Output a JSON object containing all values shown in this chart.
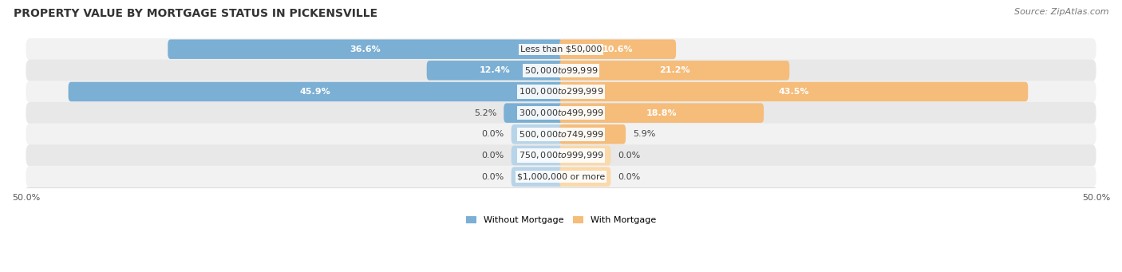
{
  "title": "PROPERTY VALUE BY MORTGAGE STATUS IN PICKENSVILLE",
  "source": "Source: ZipAtlas.com",
  "categories": [
    "Less than $50,000",
    "$50,000 to $99,999",
    "$100,000 to $299,999",
    "$300,000 to $499,999",
    "$500,000 to $749,999",
    "$750,000 to $999,999",
    "$1,000,000 or more"
  ],
  "without_mortgage": [
    36.6,
    12.4,
    45.9,
    5.2,
    0.0,
    0.0,
    0.0
  ],
  "with_mortgage": [
    10.6,
    21.2,
    43.5,
    18.8,
    5.9,
    0.0,
    0.0
  ],
  "color_without": "#7BAFD4",
  "color_with": "#F5BC7A",
  "color_without_zero": "#B8D4E8",
  "color_with_zero": "#FAD9AA",
  "bar_height": 0.62,
  "xlim": [
    -50,
    50
  ],
  "x_ticks": [
    -50,
    50
  ],
  "x_tick_labels": [
    "50.0%",
    "50.0%"
  ],
  "legend_labels": [
    "Without Mortgage",
    "With Mortgage"
  ],
  "bg_odd": "#F2F2F2",
  "bg_even": "#E8E8E8",
  "title_fontsize": 10,
  "source_fontsize": 8,
  "label_fontsize": 8,
  "category_fontsize": 8,
  "zero_stub": 4.5
}
